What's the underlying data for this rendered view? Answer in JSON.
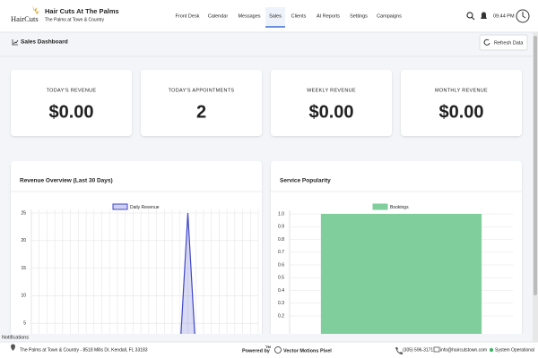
{
  "header": {
    "logo": "HairCuts",
    "title": "Hair Cuts At The Palms",
    "subtitle": "The Palms at Town & Country",
    "nav": [
      "Front Desk",
      "Calendar",
      "Messages",
      "Sales",
      "Clients",
      "AI Reports",
      "Settings",
      "Campaigns"
    ],
    "active": "Sales",
    "time": "09:44 PM"
  },
  "page": {
    "title": "Sales Dashboard",
    "refresh": "Refresh Data"
  },
  "cards": [
    {
      "label": "TODAY'S REVENUE",
      "value": "$0.00"
    },
    {
      "label": "TODAY'S APPOINTMENTS",
      "value": "2"
    },
    {
      "label": "WEEKLY REVENUE",
      "value": "$0.00"
    },
    {
      "label": "MONTHLY REVENUE",
      "value": "$0.00"
    }
  ],
  "chart_data": [
    {
      "type": "line",
      "title": "Revenue Overview (Last 30 Days)",
      "categories": [
        null,
        null,
        null,
        null,
        null,
        null,
        null,
        null,
        null,
        null,
        null,
        null,
        null,
        null,
        null,
        null,
        null,
        null,
        null,
        null,
        null,
        null,
        null,
        null,
        null,
        null,
        null,
        null,
        null,
        null
      ],
      "series": [
        {
          "name": "Daily Revenue",
          "color": "#3f46c8",
          "values": [
            0,
            0,
            0,
            0,
            0,
            0,
            0,
            0,
            0,
            0,
            0,
            0,
            0,
            0,
            0,
            0,
            0,
            0,
            0,
            0,
            25,
            0,
            0,
            0,
            0,
            0,
            0,
            0,
            0,
            0
          ]
        }
      ],
      "ylim": [
        0,
        25
      ],
      "yticks": [
        5,
        10,
        15,
        20,
        25
      ],
      "grid": true
    },
    {
      "type": "bar",
      "title": "Service Popularity",
      "categories": [
        null
      ],
      "series": [
        {
          "name": "Bookings",
          "color": "#7fce9c",
          "values": [
            1
          ]
        }
      ],
      "ylim": [
        0,
        1
      ],
      "yticks": [
        0.2,
        0.3,
        0.4,
        0.5,
        0.6,
        0.7,
        0.8,
        0.9,
        {
          "value": 1,
          "label": "1.0"
        }
      ],
      "grid": true
    }
  ],
  "footer": {
    "notifications": "Notifications",
    "address": "The Palms at Town & Country - 8518 Mills Dr, Kendall, FL 33183",
    "powered": "Powered by",
    "tm": "TM",
    "brand": "Vector Motions Pixel",
    "phone": "(305) 596-3171",
    "email": "info@haircutstown.com",
    "status": "System Operational"
  }
}
